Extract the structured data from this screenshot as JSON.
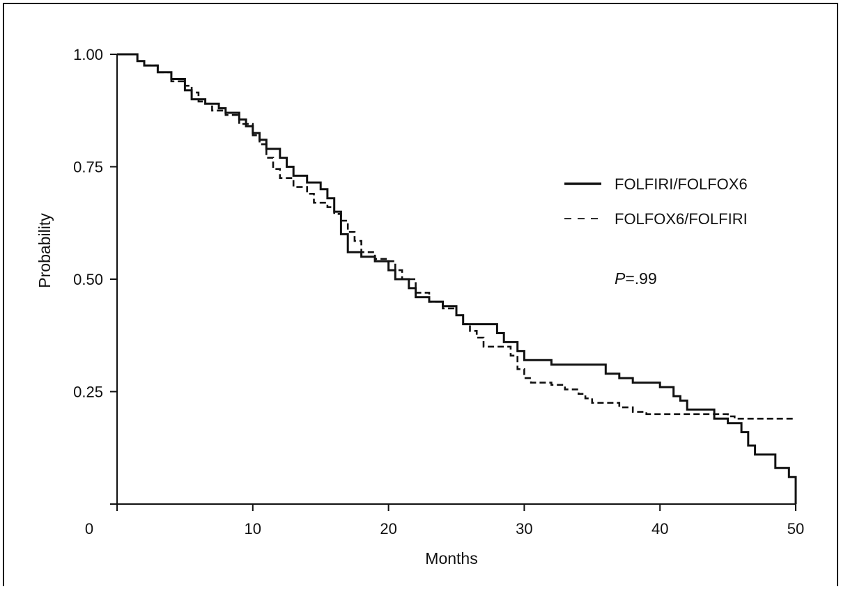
{
  "chart_data": {
    "type": "line",
    "title": "",
    "xlabel": "Months",
    "ylabel": "Probability",
    "xlim": [
      0,
      50
    ],
    "ylim": [
      0,
      1.0
    ],
    "x_ticks": [
      0,
      10,
      20,
      30,
      40,
      50
    ],
    "x_tick_labels": [
      "0",
      "10",
      "20",
      "30",
      "40",
      "50"
    ],
    "y_ticks": [
      0.25,
      0.5,
      0.75,
      1.0
    ],
    "y_tick_labels": [
      "0.25",
      "0.50",
      "0.75",
      "1.00"
    ],
    "legend_position": "right",
    "annotation": {
      "italic": "P",
      "rest": "=.99"
    },
    "series": [
      {
        "name": "FOLFIRI/FOLFOX6",
        "style": "solid",
        "color": "#111111",
        "points": [
          [
            0,
            1.0
          ],
          [
            1,
            1.0
          ],
          [
            1.5,
            0.985
          ],
          [
            2,
            0.975
          ],
          [
            3,
            0.96
          ],
          [
            4,
            0.945
          ],
          [
            5,
            0.92
          ],
          [
            5.5,
            0.9
          ],
          [
            6.5,
            0.89
          ],
          [
            7.5,
            0.88
          ],
          [
            8,
            0.87
          ],
          [
            9,
            0.855
          ],
          [
            9.5,
            0.84
          ],
          [
            10,
            0.825
          ],
          [
            10.5,
            0.81
          ],
          [
            11,
            0.79
          ],
          [
            12,
            0.77
          ],
          [
            12.5,
            0.75
          ],
          [
            13,
            0.73
          ],
          [
            14,
            0.715
          ],
          [
            15,
            0.7
          ],
          [
            15.5,
            0.68
          ],
          [
            16,
            0.65
          ],
          [
            16.5,
            0.6
          ],
          [
            17,
            0.56
          ],
          [
            18,
            0.55
          ],
          [
            19,
            0.54
          ],
          [
            20,
            0.52
          ],
          [
            20.5,
            0.5
          ],
          [
            21.5,
            0.48
          ],
          [
            22,
            0.46
          ],
          [
            23,
            0.45
          ],
          [
            24,
            0.44
          ],
          [
            25,
            0.42
          ],
          [
            25.5,
            0.4
          ],
          [
            28,
            0.38
          ],
          [
            28.5,
            0.36
          ],
          [
            29.5,
            0.34
          ],
          [
            30,
            0.32
          ],
          [
            32,
            0.31
          ],
          [
            36,
            0.29
          ],
          [
            37,
            0.28
          ],
          [
            38,
            0.27
          ],
          [
            40,
            0.26
          ],
          [
            41,
            0.24
          ],
          [
            41.5,
            0.23
          ],
          [
            42,
            0.21
          ],
          [
            44,
            0.19
          ],
          [
            45,
            0.18
          ],
          [
            46,
            0.16
          ],
          [
            46.5,
            0.13
          ],
          [
            47,
            0.11
          ],
          [
            48.5,
            0.08
          ],
          [
            49.5,
            0.06
          ],
          [
            50,
            0.0
          ]
        ]
      },
      {
        "name": "FOLFOX6/FOLFIRI",
        "style": "dashed",
        "color": "#111111",
        "points": [
          [
            0,
            1.0
          ],
          [
            1,
            1.0
          ],
          [
            1.5,
            0.985
          ],
          [
            2,
            0.975
          ],
          [
            3,
            0.96
          ],
          [
            4,
            0.94
          ],
          [
            5,
            0.93
          ],
          [
            5.5,
            0.915
          ],
          [
            6,
            0.895
          ],
          [
            6.5,
            0.89
          ],
          [
            7,
            0.875
          ],
          [
            8,
            0.865
          ],
          [
            9,
            0.845
          ],
          [
            10,
            0.82
          ],
          [
            10.5,
            0.8
          ],
          [
            11,
            0.77
          ],
          [
            11.5,
            0.745
          ],
          [
            12,
            0.725
          ],
          [
            13,
            0.705
          ],
          [
            14,
            0.69
          ],
          [
            14.5,
            0.67
          ],
          [
            15.5,
            0.66
          ],
          [
            16,
            0.645
          ],
          [
            16.5,
            0.63
          ],
          [
            17,
            0.605
          ],
          [
            17.5,
            0.585
          ],
          [
            18,
            0.56
          ],
          [
            19,
            0.545
          ],
          [
            20,
            0.54
          ],
          [
            20.5,
            0.52
          ],
          [
            21,
            0.5
          ],
          [
            22,
            0.47
          ],
          [
            23,
            0.45
          ],
          [
            24,
            0.435
          ],
          [
            25,
            0.42
          ],
          [
            25.5,
            0.4
          ],
          [
            26,
            0.385
          ],
          [
            26.5,
            0.37
          ],
          [
            27,
            0.35
          ],
          [
            28,
            0.35
          ],
          [
            29,
            0.33
          ],
          [
            29.5,
            0.3
          ],
          [
            30,
            0.28
          ],
          [
            30.5,
            0.27
          ],
          [
            32,
            0.265
          ],
          [
            33,
            0.255
          ],
          [
            34,
            0.245
          ],
          [
            34.5,
            0.235
          ],
          [
            35,
            0.225
          ],
          [
            37,
            0.215
          ],
          [
            38,
            0.205
          ],
          [
            39,
            0.2
          ],
          [
            45,
            0.195
          ],
          [
            45.5,
            0.19
          ],
          [
            50,
            0.19
          ]
        ]
      }
    ]
  }
}
